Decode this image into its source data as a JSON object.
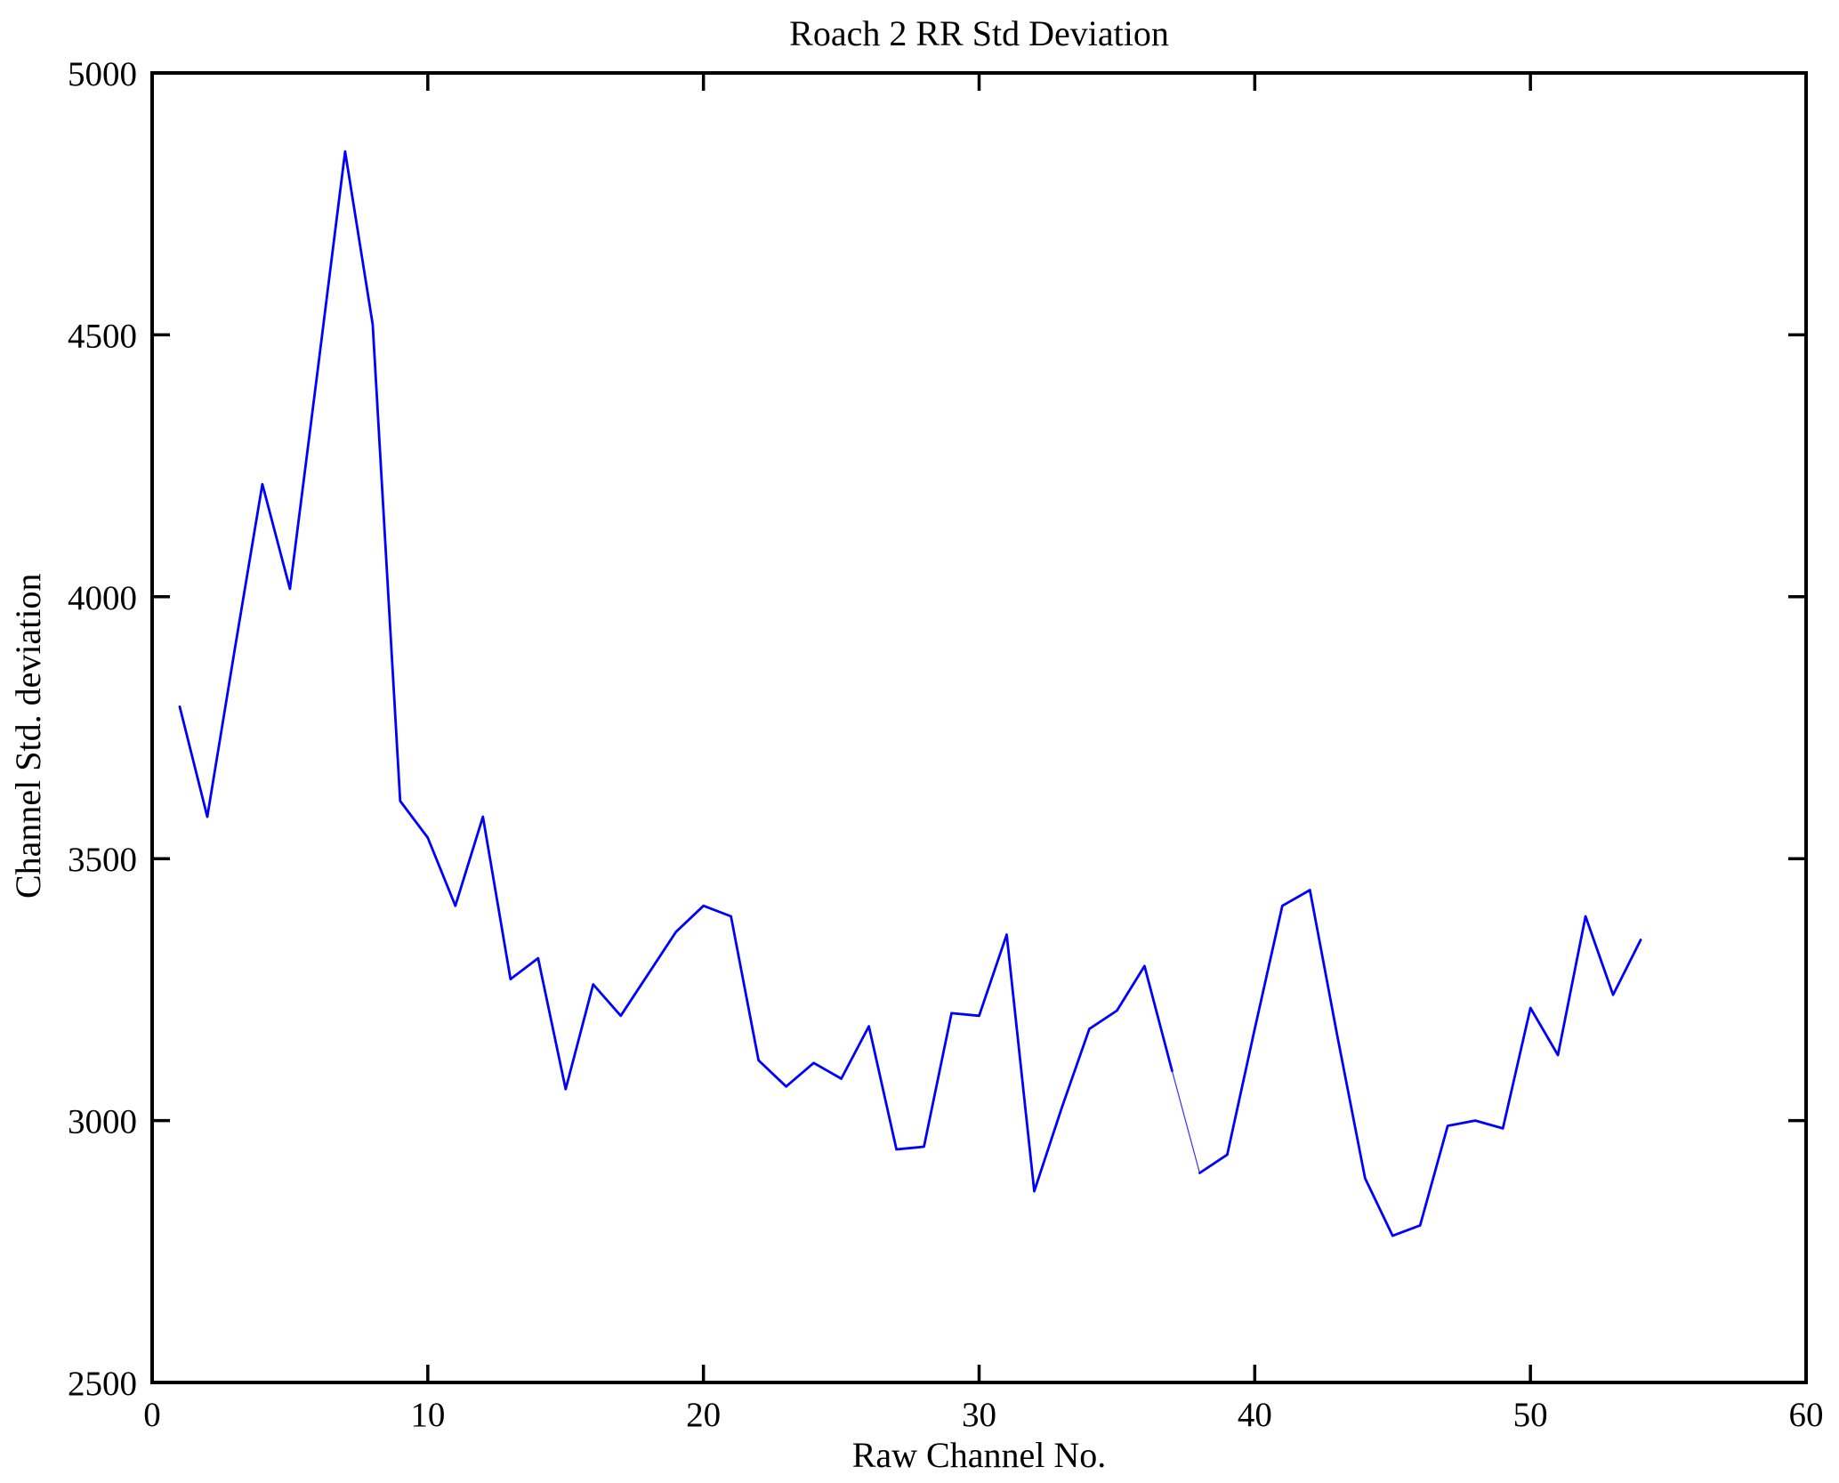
{
  "figure": {
    "title": "Roach 2 RR Std Deviation",
    "xlabel": "Raw Channel No.",
    "ylabel": "Channel Std. deviation"
  },
  "chart_data": {
    "type": "line",
    "title": "Roach 2 RR Std Deviation",
    "xlabel": "Raw Channel No.",
    "ylabel": "Channel Std. deviation",
    "xlim": [
      0,
      60
    ],
    "ylim": [
      2500,
      5000
    ],
    "xticks": [
      0,
      10,
      20,
      30,
      40,
      50,
      60
    ],
    "yticks": [
      2500,
      3000,
      3500,
      4000,
      4500,
      5000
    ],
    "grid": false,
    "legend_position": "none",
    "line_color": "#0000ff",
    "axis_color": "#000000",
    "background_color": "#ffffff",
    "x": [
      1,
      2,
      3,
      4,
      5,
      6,
      7,
      8,
      9,
      10,
      11,
      12,
      13,
      14,
      15,
      16,
      17,
      18,
      19,
      20,
      21,
      22,
      23,
      24,
      25,
      26,
      27,
      28,
      29,
      30,
      31,
      32,
      33,
      34,
      35,
      36,
      37,
      38,
      39,
      40,
      41,
      42,
      43,
      44,
      45,
      46,
      47,
      48,
      49,
      50,
      51,
      52,
      53,
      54
    ],
    "values": [
      3790,
      3580,
      3900,
      4215,
      4015,
      4430,
      4850,
      4520,
      3610,
      3540,
      3410,
      3580,
      3270,
      3310,
      3060,
      3260,
      3200,
      3280,
      3360,
      3410,
      3390,
      3115,
      3065,
      3110,
      3080,
      3180,
      2945,
      2950,
      3205,
      3200,
      3355,
      2865,
      3025,
      3175,
      3210,
      3295,
      3095,
      2900,
      2935,
      3175,
      3410,
      3440,
      3160,
      2890,
      2780,
      2800,
      2990,
      3000,
      2985,
      3215,
      3125,
      3390,
      3240,
      3345
    ],
    "thin_render_artifact": {
      "between_x": [
        37,
        38
      ]
    }
  }
}
